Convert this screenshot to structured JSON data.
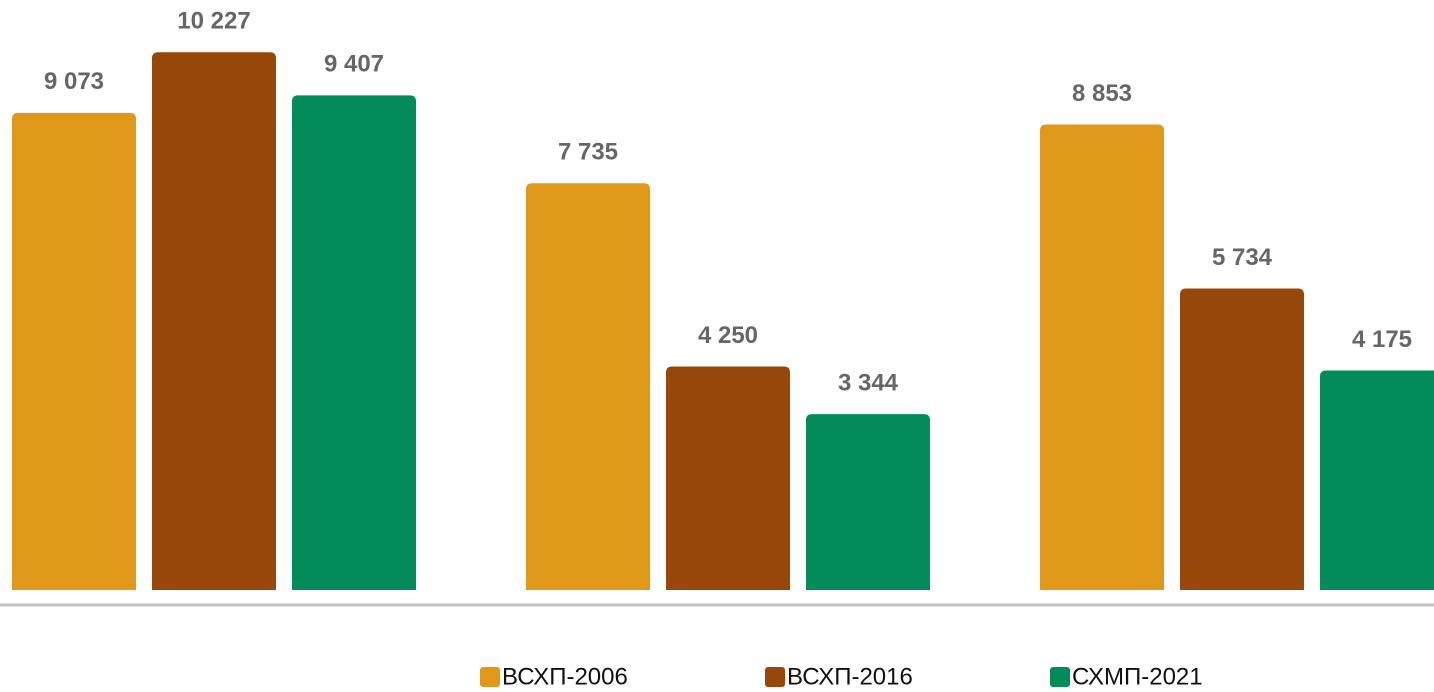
{
  "chart_data": {
    "type": "bar",
    "categories": [
      null,
      null,
      null
    ],
    "series": [
      {
        "name": "ВСХП-2006",
        "color": "#e0981a",
        "values": [
          9073,
          7735,
          8853
        ],
        "value_labels": [
          "9 073",
          "7 735",
          "8 853"
        ]
      },
      {
        "name": "ВСХП-2016",
        "color": "#97470a",
        "values": [
          10227,
          4250,
          5734
        ],
        "value_labels": [
          "10 227",
          "4 250",
          "5 734"
        ]
      },
      {
        "name": "СХМП-2021",
        "color": "#038c5a",
        "values": [
          9407,
          3344,
          4175
        ],
        "value_labels": [
          "9 407",
          "3 344",
          "4 175"
        ]
      }
    ],
    "ylim": [
      0,
      11220
    ]
  }
}
